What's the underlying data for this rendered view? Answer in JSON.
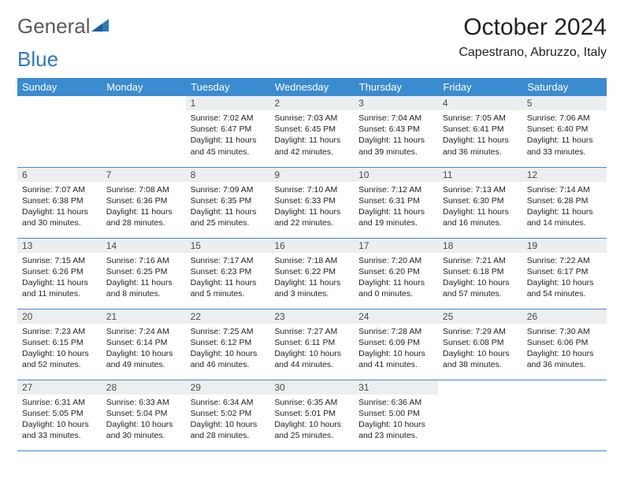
{
  "brand": {
    "part1": "General",
    "part2": "Blue"
  },
  "title": "October 2024",
  "location": "Capestrano, Abruzzo, Italy",
  "colors": {
    "header_bg": "#3b8bd0",
    "header_text": "#ffffff",
    "daynum_bg": "#eceef0",
    "border": "#3b8bd0",
    "logo_gray": "#5a5a5a",
    "logo_blue": "#2b7ac0"
  },
  "day_headers": [
    "Sunday",
    "Monday",
    "Tuesday",
    "Wednesday",
    "Thursday",
    "Friday",
    "Saturday"
  ],
  "weeks": [
    [
      null,
      null,
      {
        "n": "1",
        "sr": "Sunrise: 7:02 AM",
        "ss": "Sunset: 6:47 PM",
        "dl": "Daylight: 11 hours and 45 minutes."
      },
      {
        "n": "2",
        "sr": "Sunrise: 7:03 AM",
        "ss": "Sunset: 6:45 PM",
        "dl": "Daylight: 11 hours and 42 minutes."
      },
      {
        "n": "3",
        "sr": "Sunrise: 7:04 AM",
        "ss": "Sunset: 6:43 PM",
        "dl": "Daylight: 11 hours and 39 minutes."
      },
      {
        "n": "4",
        "sr": "Sunrise: 7:05 AM",
        "ss": "Sunset: 6:41 PM",
        "dl": "Daylight: 11 hours and 36 minutes."
      },
      {
        "n": "5",
        "sr": "Sunrise: 7:06 AM",
        "ss": "Sunset: 6:40 PM",
        "dl": "Daylight: 11 hours and 33 minutes."
      }
    ],
    [
      {
        "n": "6",
        "sr": "Sunrise: 7:07 AM",
        "ss": "Sunset: 6:38 PM",
        "dl": "Daylight: 11 hours and 30 minutes."
      },
      {
        "n": "7",
        "sr": "Sunrise: 7:08 AM",
        "ss": "Sunset: 6:36 PM",
        "dl": "Daylight: 11 hours and 28 minutes."
      },
      {
        "n": "8",
        "sr": "Sunrise: 7:09 AM",
        "ss": "Sunset: 6:35 PM",
        "dl": "Daylight: 11 hours and 25 minutes."
      },
      {
        "n": "9",
        "sr": "Sunrise: 7:10 AM",
        "ss": "Sunset: 6:33 PM",
        "dl": "Daylight: 11 hours and 22 minutes."
      },
      {
        "n": "10",
        "sr": "Sunrise: 7:12 AM",
        "ss": "Sunset: 6:31 PM",
        "dl": "Daylight: 11 hours and 19 minutes."
      },
      {
        "n": "11",
        "sr": "Sunrise: 7:13 AM",
        "ss": "Sunset: 6:30 PM",
        "dl": "Daylight: 11 hours and 16 minutes."
      },
      {
        "n": "12",
        "sr": "Sunrise: 7:14 AM",
        "ss": "Sunset: 6:28 PM",
        "dl": "Daylight: 11 hours and 14 minutes."
      }
    ],
    [
      {
        "n": "13",
        "sr": "Sunrise: 7:15 AM",
        "ss": "Sunset: 6:26 PM",
        "dl": "Daylight: 11 hours and 11 minutes."
      },
      {
        "n": "14",
        "sr": "Sunrise: 7:16 AM",
        "ss": "Sunset: 6:25 PM",
        "dl": "Daylight: 11 hours and 8 minutes."
      },
      {
        "n": "15",
        "sr": "Sunrise: 7:17 AM",
        "ss": "Sunset: 6:23 PM",
        "dl": "Daylight: 11 hours and 5 minutes."
      },
      {
        "n": "16",
        "sr": "Sunrise: 7:18 AM",
        "ss": "Sunset: 6:22 PM",
        "dl": "Daylight: 11 hours and 3 minutes."
      },
      {
        "n": "17",
        "sr": "Sunrise: 7:20 AM",
        "ss": "Sunset: 6:20 PM",
        "dl": "Daylight: 11 hours and 0 minutes."
      },
      {
        "n": "18",
        "sr": "Sunrise: 7:21 AM",
        "ss": "Sunset: 6:18 PM",
        "dl": "Daylight: 10 hours and 57 minutes."
      },
      {
        "n": "19",
        "sr": "Sunrise: 7:22 AM",
        "ss": "Sunset: 6:17 PM",
        "dl": "Daylight: 10 hours and 54 minutes."
      }
    ],
    [
      {
        "n": "20",
        "sr": "Sunrise: 7:23 AM",
        "ss": "Sunset: 6:15 PM",
        "dl": "Daylight: 10 hours and 52 minutes."
      },
      {
        "n": "21",
        "sr": "Sunrise: 7:24 AM",
        "ss": "Sunset: 6:14 PM",
        "dl": "Daylight: 10 hours and 49 minutes."
      },
      {
        "n": "22",
        "sr": "Sunrise: 7:25 AM",
        "ss": "Sunset: 6:12 PM",
        "dl": "Daylight: 10 hours and 46 minutes."
      },
      {
        "n": "23",
        "sr": "Sunrise: 7:27 AM",
        "ss": "Sunset: 6:11 PM",
        "dl": "Daylight: 10 hours and 44 minutes."
      },
      {
        "n": "24",
        "sr": "Sunrise: 7:28 AM",
        "ss": "Sunset: 6:09 PM",
        "dl": "Daylight: 10 hours and 41 minutes."
      },
      {
        "n": "25",
        "sr": "Sunrise: 7:29 AM",
        "ss": "Sunset: 6:08 PM",
        "dl": "Daylight: 10 hours and 38 minutes."
      },
      {
        "n": "26",
        "sr": "Sunrise: 7:30 AM",
        "ss": "Sunset: 6:06 PM",
        "dl": "Daylight: 10 hours and 36 minutes."
      }
    ],
    [
      {
        "n": "27",
        "sr": "Sunrise: 6:31 AM",
        "ss": "Sunset: 5:05 PM",
        "dl": "Daylight: 10 hours and 33 minutes."
      },
      {
        "n": "28",
        "sr": "Sunrise: 6:33 AM",
        "ss": "Sunset: 5:04 PM",
        "dl": "Daylight: 10 hours and 30 minutes."
      },
      {
        "n": "29",
        "sr": "Sunrise: 6:34 AM",
        "ss": "Sunset: 5:02 PM",
        "dl": "Daylight: 10 hours and 28 minutes."
      },
      {
        "n": "30",
        "sr": "Sunrise: 6:35 AM",
        "ss": "Sunset: 5:01 PM",
        "dl": "Daylight: 10 hours and 25 minutes."
      },
      {
        "n": "31",
        "sr": "Sunrise: 6:36 AM",
        "ss": "Sunset: 5:00 PM",
        "dl": "Daylight: 10 hours and 23 minutes."
      },
      null,
      null
    ]
  ]
}
